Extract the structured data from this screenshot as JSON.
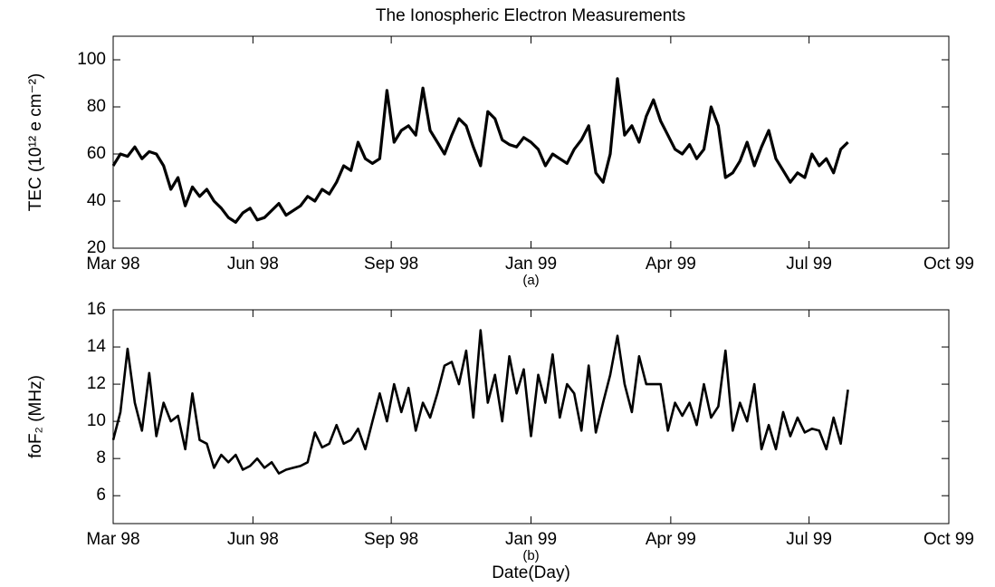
{
  "chart_data": [
    {
      "type": "line",
      "title": "The Ionospheric Electron Measurements",
      "ylabel": "TEC (10¹² e cm⁻²)",
      "caption": "(a)",
      "color": "#000000",
      "line_width": 3.2,
      "x": [
        0,
        5,
        10,
        15,
        20,
        25,
        30,
        35,
        40,
        45,
        50,
        55,
        60,
        65,
        70,
        75,
        80,
        85,
        90,
        95,
        100,
        105,
        110,
        115,
        120,
        125,
        130,
        135,
        140,
        145,
        150,
        155,
        160,
        165,
        170,
        175,
        180,
        185,
        190,
        195,
        200,
        205,
        210,
        215,
        220,
        225,
        230,
        235,
        240,
        245,
        250,
        255,
        260,
        265,
        270,
        275,
        280,
        285,
        290,
        295,
        300,
        305,
        310,
        315,
        320,
        325,
        330,
        335,
        340,
        345,
        350,
        355,
        360,
        365,
        370,
        375,
        380,
        385,
        390,
        395,
        400,
        405,
        410,
        415,
        420,
        425,
        430,
        435,
        440,
        445,
        450,
        455,
        460,
        465,
        470,
        475,
        480,
        485,
        490,
        495,
        500,
        505,
        510
      ],
      "values": [
        55,
        60,
        59,
        63,
        58,
        61,
        60,
        55,
        45,
        50,
        38,
        46,
        42,
        45,
        40,
        37,
        33,
        31,
        35,
        37,
        32,
        33,
        36,
        39,
        34,
        36,
        38,
        42,
        40,
        45,
        43,
        48,
        55,
        53,
        65,
        58,
        56,
        58,
        87,
        65,
        70,
        72,
        68,
        88,
        70,
        65,
        60,
        68,
        75,
        72,
        63,
        55,
        78,
        75,
        66,
        64,
        63,
        67,
        65,
        62,
        55,
        60,
        58,
        56,
        62,
        66,
        72,
        52,
        48,
        60,
        92,
        68,
        72,
        65,
        76,
        83,
        74,
        68,
        62,
        60,
        64,
        58,
        62,
        80,
        72,
        50,
        52,
        57,
        65,
        55,
        63,
        70,
        58,
        53,
        48,
        52,
        50,
        60,
        55,
        58,
        52,
        62,
        65
      ],
      "xlim": [
        0,
        580
      ],
      "xticks": [
        {
          "value": 0,
          "label": "Mar 98"
        },
        {
          "value": 97,
          "label": "Jun 98"
        },
        {
          "value": 193,
          "label": "Sep 98"
        },
        {
          "value": 290,
          "label": "Jan 99"
        },
        {
          "value": 387,
          "label": "Apr 99"
        },
        {
          "value": 483,
          "label": "Jul 99"
        },
        {
          "value": 580,
          "label": "Oct 99"
        }
      ],
      "ylim": [
        20,
        110
      ],
      "yticks": [
        20,
        40,
        60,
        80,
        100
      ],
      "grid": false
    },
    {
      "type": "line",
      "ylabel": "foF₂ (MHz)",
      "caption": "(b)",
      "xlabel": "Date(Day)",
      "color": "#000000",
      "line_width": 2.6,
      "x": [
        0,
        5,
        10,
        15,
        20,
        25,
        30,
        35,
        40,
        45,
        50,
        55,
        60,
        65,
        70,
        75,
        80,
        85,
        90,
        95,
        100,
        105,
        110,
        115,
        120,
        125,
        130,
        135,
        140,
        145,
        150,
        155,
        160,
        165,
        170,
        175,
        180,
        185,
        190,
        195,
        200,
        205,
        210,
        215,
        220,
        225,
        230,
        235,
        240,
        245,
        250,
        255,
        260,
        265,
        270,
        275,
        280,
        285,
        290,
        295,
        300,
        305,
        310,
        315,
        320,
        325,
        330,
        335,
        340,
        345,
        350,
        355,
        360,
        365,
        370,
        375,
        380,
        385,
        390,
        395,
        400,
        405,
        410,
        415,
        420,
        425,
        430,
        435,
        440,
        445,
        450,
        455,
        460,
        465,
        470,
        475,
        480,
        485,
        490,
        495,
        500,
        505,
        510
      ],
      "values": [
        9,
        10.5,
        13.9,
        11,
        9.5,
        12.6,
        9.2,
        11,
        10,
        10.3,
        8.5,
        11.5,
        9,
        8.8,
        7.5,
        8.2,
        7.8,
        8.2,
        7.4,
        7.6,
        8,
        7.5,
        7.8,
        7.2,
        7.4,
        7.5,
        7.6,
        7.8,
        9.4,
        8.6,
        8.8,
        9.8,
        8.8,
        9,
        9.6,
        8.5,
        10,
        11.5,
        10,
        12,
        10.5,
        11.8,
        9.5,
        11,
        10.2,
        11.5,
        13,
        13.2,
        12,
        13.8,
        10.2,
        14.9,
        11,
        12.5,
        10,
        13.5,
        11.5,
        12.8,
        9.2,
        12.5,
        11,
        13.6,
        10.2,
        12,
        11.5,
        9.5,
        13,
        9.4,
        11,
        12.5,
        14.6,
        12,
        10.5,
        13.5,
        12,
        12,
        12,
        9.5,
        11,
        10.3,
        11,
        9.8,
        12,
        10.2,
        10.8,
        13.8,
        9.5,
        11,
        10,
        12,
        8.5,
        9.8,
        8.5,
        10.5,
        9.2,
        10.2,
        9.4,
        9.6,
        9.5,
        8.5,
        10.2,
        8.8,
        11.7
      ],
      "xlim": [
        0,
        580
      ],
      "xticks": [
        {
          "value": 0,
          "label": "Mar 98"
        },
        {
          "value": 97,
          "label": "Jun 98"
        },
        {
          "value": 193,
          "label": "Sep 98"
        },
        {
          "value": 290,
          "label": "Jan 99"
        },
        {
          "value": 387,
          "label": "Apr 99"
        },
        {
          "value": 483,
          "label": "Jul 99"
        },
        {
          "value": 580,
          "label": "Oct 99"
        }
      ],
      "ylim": [
        4.5,
        16
      ],
      "yticks": [
        6,
        8,
        10,
        12,
        14,
        16
      ],
      "grid": false
    }
  ]
}
